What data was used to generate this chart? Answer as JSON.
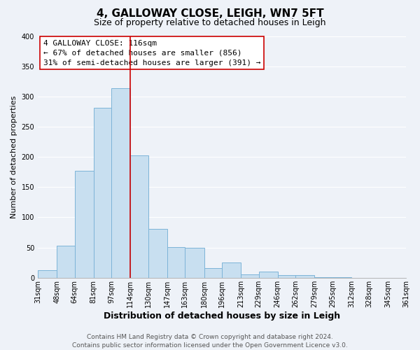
{
  "title": "4, GALLOWAY CLOSE, LEIGH, WN7 5FT",
  "subtitle": "Size of property relative to detached houses in Leigh",
  "xlabel": "Distribution of detached houses by size in Leigh",
  "ylabel": "Number of detached properties",
  "bin_edges": [
    31,
    48,
    64,
    81,
    97,
    114,
    130,
    147,
    163,
    180,
    196,
    213,
    229,
    246,
    262,
    279,
    295,
    312,
    328,
    345,
    361
  ],
  "bar_heights": [
    13,
    53,
    177,
    281,
    314,
    203,
    81,
    51,
    50,
    16,
    25,
    5,
    10,
    4,
    4,
    1,
    1,
    0,
    0,
    0
  ],
  "bar_facecolor": "#c8dff0",
  "bar_edgecolor": "#7db4d8",
  "vline_x": 114,
  "vline_color": "#cc0000",
  "annotation_line1": "4 GALLOWAY CLOSE: 116sqm",
  "annotation_line2": "← 67% of detached houses are smaller (856)",
  "annotation_line3": "31% of semi-detached houses are larger (391) →",
  "annotation_box_edgecolor": "#cc0000",
  "annotation_box_facecolor": "white",
  "ylim": [
    0,
    400
  ],
  "yticks": [
    0,
    50,
    100,
    150,
    200,
    250,
    300,
    350,
    400
  ],
  "footer_line1": "Contains HM Land Registry data © Crown copyright and database right 2024.",
  "footer_line2": "Contains public sector information licensed under the Open Government Licence v3.0.",
  "background_color": "#eef2f8",
  "grid_color": "white",
  "title_fontsize": 11,
  "subtitle_fontsize": 9,
  "xlabel_fontsize": 9,
  "ylabel_fontsize": 8,
  "tick_fontsize": 7,
  "annotation_fontsize": 8,
  "footer_fontsize": 6.5
}
